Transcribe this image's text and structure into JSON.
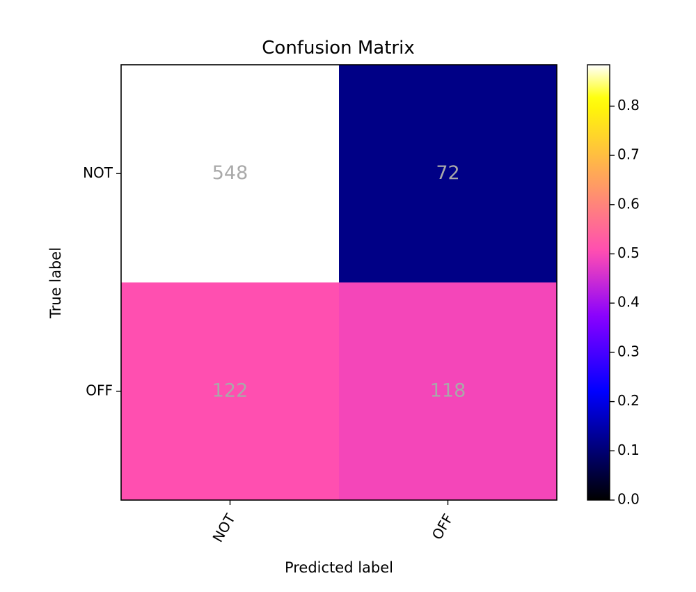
{
  "chart_data": {
    "type": "heatmap",
    "title": "Confusion Matrix",
    "xlabel": "Predicted label",
    "ylabel": "True label",
    "x_categories": [
      "NOT",
      "OFF"
    ],
    "y_categories": [
      "NOT",
      "OFF"
    ],
    "values": [
      [
        548,
        72
      ],
      [
        122,
        118
      ]
    ],
    "normalized": [
      [
        0.884,
        0.116
      ],
      [
        0.508,
        0.492
      ]
    ],
    "colormap": "gnuplot2",
    "colorbar": {
      "range": [
        0,
        0.884
      ],
      "ticks": [
        0.0,
        0.1,
        0.2,
        0.3,
        0.4,
        0.5,
        0.6,
        0.7,
        0.8
      ],
      "tick_labels": [
        "0.0",
        "0.1",
        "0.2",
        "0.3",
        "0.4",
        "0.5",
        "0.6",
        "0.7",
        "0.8"
      ]
    },
    "cell_text_color": "#a9a9a9",
    "grid": false
  }
}
